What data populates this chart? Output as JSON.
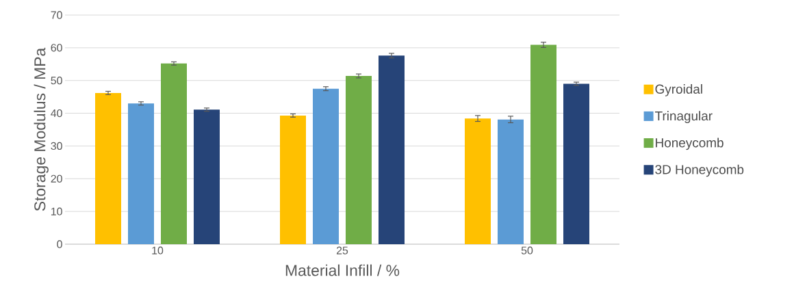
{
  "chart_data": {
    "type": "bar",
    "xlabel": "Material Infill / %",
    "ylabel": "Storage Modulus / MPa",
    "categories": [
      "10",
      "25",
      "50"
    ],
    "series": [
      {
        "name": "Gyroidal",
        "color": "#ffc000",
        "values": [
          46.2,
          39.3,
          38.4
        ],
        "errors": [
          0.5,
          0.5,
          0.9
        ]
      },
      {
        "name": "Trinagular",
        "color": "#5b9bd5",
        "values": [
          43.0,
          47.5,
          38.1
        ],
        "errors": [
          0.5,
          0.6,
          1.0
        ]
      },
      {
        "name": "Honeycomb",
        "color": "#70ad47",
        "values": [
          55.2,
          51.4,
          60.9
        ],
        "errors": [
          0.5,
          0.6,
          0.8
        ]
      },
      {
        "name": "3D Honeycomb",
        "color": "#264478",
        "values": [
          41.1,
          57.6,
          49.0
        ],
        "errors": [
          0.5,
          0.7,
          0.5
        ]
      }
    ],
    "ylim": [
      0,
      70
    ],
    "yticks": [
      0,
      10,
      20,
      30,
      40,
      50,
      60,
      70
    ],
    "grid": "y",
    "legend": "right"
  }
}
